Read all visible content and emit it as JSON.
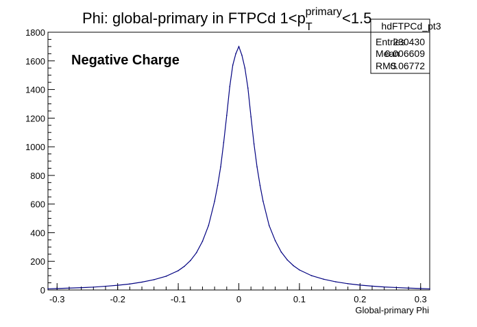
{
  "chart_data": {
    "type": "histogram",
    "title": {
      "main": "Phi: global-primary in FTPCd 1<p",
      "superscript": "primary",
      "subscript": "T",
      "suffix": "<1.5"
    },
    "annotation": "Negative Charge",
    "xlabel": "Global-primary Phi",
    "ylabel": "",
    "xlim": [
      -0.315,
      0.315
    ],
    "ylim": [
      0,
      1800
    ],
    "x_ticks": [
      -0.3,
      -0.2,
      -0.1,
      0,
      0.1,
      0.2,
      0.3
    ],
    "x_tick_labels": [
      "-0.3",
      "-0.2",
      "-0.1",
      "0",
      "0.1",
      "0.2",
      "0.3"
    ],
    "y_ticks": [
      0,
      200,
      400,
      600,
      800,
      1000,
      1200,
      1400,
      1600,
      1800
    ],
    "y_tick_labels": [
      "0",
      "200",
      "400",
      "600",
      "800",
      "1000",
      "1200",
      "1400",
      "1600",
      "1800"
    ],
    "grid": false,
    "line_color": "#000080",
    "series": [
      {
        "x": [
          -0.315,
          -0.3,
          -0.28,
          -0.26,
          -0.24,
          -0.22,
          -0.2,
          -0.18,
          -0.16,
          -0.14,
          -0.12,
          -0.1,
          -0.09,
          -0.08,
          -0.07,
          -0.06,
          -0.05,
          -0.04,
          -0.035,
          -0.03,
          -0.025,
          -0.02,
          -0.015,
          -0.01,
          -0.005,
          0,
          0.005,
          0.01,
          0.015,
          0.02,
          0.025,
          0.03,
          0.035,
          0.04,
          0.05,
          0.06,
          0.07,
          0.08,
          0.09,
          0.1,
          0.12,
          0.14,
          0.16,
          0.18,
          0.2,
          0.22,
          0.24,
          0.26,
          0.28,
          0.3,
          0.315
        ],
        "y": [
          8,
          10,
          13,
          16,
          20,
          26,
          33,
          42,
          55,
          72,
          96,
          135,
          165,
          205,
          260,
          340,
          450,
          620,
          730,
          860,
          1030,
          1220,
          1420,
          1570,
          1650,
          1700,
          1640,
          1550,
          1410,
          1210,
          1020,
          860,
          730,
          620,
          450,
          345,
          265,
          210,
          170,
          140,
          100,
          75,
          57,
          44,
          34,
          27,
          21,
          17,
          13,
          10,
          8
        ]
      }
    ]
  },
  "stats_box": {
    "name": "hdFTPCd_pt3",
    "rows": [
      {
        "label": "Entries",
        "value": "230430"
      },
      {
        "label": "Mean",
        "value": "0.006609"
      },
      {
        "label": "RMS",
        "value": "0.06772"
      }
    ]
  }
}
